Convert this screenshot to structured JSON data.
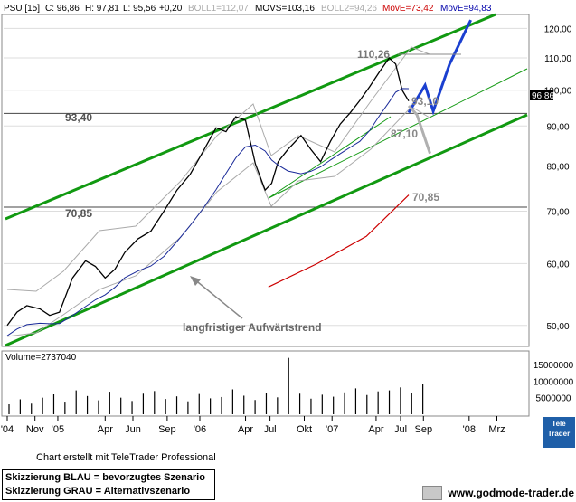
{
  "header": {
    "symbol": "PSU [15]",
    "close": "C: 96,86",
    "high": "H: 97,81",
    "low": "L: 95,56",
    "change": "+0,20",
    "boll1": "BOLL1=112,07",
    "movs": "MOVS=103,16",
    "boll2": "BOLL2=94,26",
    "move_red": "MovE=73,42",
    "move_blue": "MovE=94,83"
  },
  "price_badge": "96,86",
  "volume_label": "Volume=2737040",
  "annotations": {
    "level_9340": "93,40",
    "level_7085_left": "70,85",
    "level_11026": "110,26",
    "level_9310": "93,10",
    "level_8710": "87,10",
    "level_7085_right": "70,85",
    "trend_text": "langfristiger Aufwärtstrend"
  },
  "footer": {
    "credit": "Chart erstellt mit TeleTrader Professional",
    "legend_blue": "Skizzierung BLAU = bevorzugtes Szenario",
    "legend_gray": "Skizzierung GRAU = Alternativszenario",
    "site": "www.godmode-trader.de",
    "tt_logo": "Tele Trader"
  },
  "colors": {
    "price": "#000000",
    "movs": "#333333",
    "move_red": "#cc0000",
    "move_blue": "#0000aa",
    "channel": "#119911",
    "scenario_blue": "#1a3fd0",
    "scenario_gray": "#b0b0b0",
    "bollinger": "#aaaaaa",
    "badge": "#000000"
  },
  "chart_data": {
    "type": "line",
    "y_scale": "log",
    "ylim": [
      47,
      125
    ],
    "yticks": [
      50,
      60,
      70,
      80,
      90,
      100,
      110,
      120
    ],
    "ytick_labels": [
      "50,00",
      "60,00",
      "70,00",
      "80,00",
      "90,00",
      "100,00",
      "110,00",
      "120,00"
    ],
    "volume_yticks": [
      5000000,
      10000000,
      15000000
    ],
    "volume_ytick_labels": [
      "5000000",
      "10000000",
      "15000000"
    ],
    "x_tick_labels": [
      "'04",
      "Nov",
      "'05",
      "Apr",
      "Jun",
      "Sep",
      "'06",
      "Apr",
      "Jul",
      "Okt",
      "'07",
      "Apr",
      "Jul",
      "Sep",
      "'08",
      "Mrz"
    ],
    "x_ticks_t": [
      0,
      0.085,
      0.155,
      0.3,
      0.385,
      0.49,
      0.59,
      0.73,
      0.805,
      0.91,
      0.995,
      1.13,
      1.205,
      1.275,
      1.415,
      1.5
    ],
    "price_series": {
      "t": [
        0,
        0.03,
        0.06,
        0.1,
        0.13,
        0.16,
        0.2,
        0.24,
        0.27,
        0.3,
        0.33,
        0.36,
        0.4,
        0.44,
        0.48,
        0.52,
        0.56,
        0.6,
        0.64,
        0.67,
        0.7,
        0.73,
        0.76,
        0.79,
        0.81,
        0.83,
        0.86,
        0.9,
        0.93,
        0.96,
        0.99,
        1.02,
        1.05,
        1.08,
        1.11,
        1.14,
        1.17,
        1.19,
        1.21,
        1.23
      ],
      "close": [
        50,
        52,
        53,
        52.5,
        51.5,
        52,
        57.5,
        60.5,
        59.5,
        57.5,
        59,
        62,
        64.5,
        66,
        70,
        74.5,
        78,
        83.5,
        89.5,
        88.5,
        92.5,
        91.5,
        80.5,
        74.5,
        76,
        81,
        84,
        87.5,
        84,
        81,
        86,
        90.5,
        93.5,
        97,
        101,
        105.5,
        110,
        108,
        100,
        96.86
      ]
    },
    "volume_series": [
      3000000,
      4500000,
      3200000,
      5000000,
      6000000,
      3800000,
      7200000,
      5500000,
      4200000,
      6800000,
      5000000,
      4000000,
      6200000,
      7000000,
      4600000,
      5400000,
      3900000,
      6100000,
      4800000,
      5200000,
      7500000,
      5600000,
      4300000,
      6400000,
      5100000,
      17000000,
      6200000,
      4700000,
      5900000,
      5300000,
      6600000,
      7800000,
      5800000,
      6900000,
      7200000,
      8100000,
      6300000,
      9000000
    ],
    "horizontal_levels": [
      93.4,
      70.85
    ],
    "scenario_blue": {
      "t": [
        1.23,
        1.28,
        1.305,
        1.355,
        1.42
      ],
      "y": [
        93.6,
        101.5,
        94,
        108,
        123
      ]
    },
    "scenario_gray": {
      "t": [
        1.23,
        1.255,
        1.295
      ],
      "y": [
        95.5,
        93,
        83
      ]
    },
    "move_red_series": {
      "t": [
        0.8,
        0.95,
        1.1,
        1.23
      ],
      "y": [
        56,
        60,
        65,
        73.42
      ]
    },
    "grid": true
  }
}
